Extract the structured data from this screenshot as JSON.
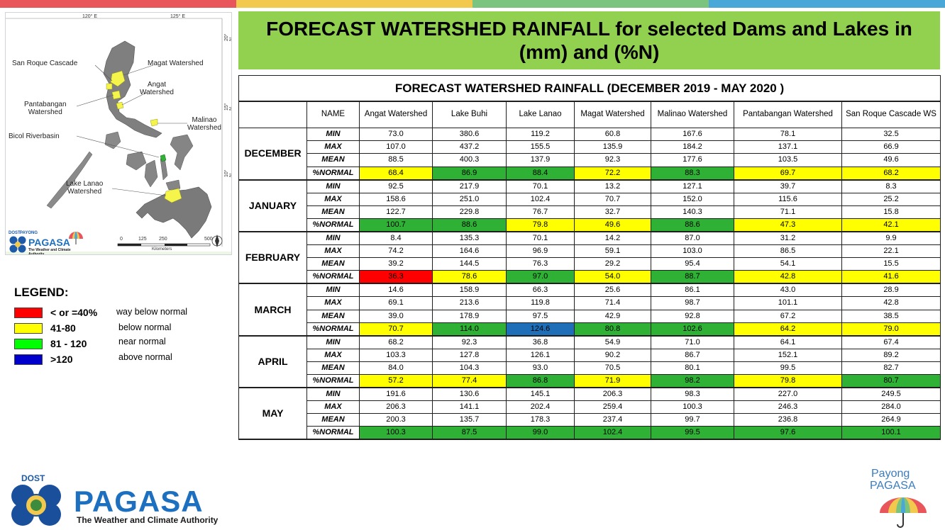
{
  "colors": {
    "stripe": [
      "#e8565b",
      "#f2c94c",
      "#7bc47f",
      "#4aa8d8"
    ],
    "banner_bg": "#92d050",
    "way_below": "#ff0000",
    "below": "#ffff00",
    "near": "#2eb135",
    "above": "#1f6fb8",
    "legend_near": "#00ff00",
    "legend_above": "#0000cc"
  },
  "banner": {
    "title": "FORECAST WATERSHED RAINFALL  for selected Dams and Lakes in (mm) and (%N)"
  },
  "map": {
    "lon_labels": [
      "120° E",
      "125° E"
    ],
    "lat_labels": [
      "20° N",
      "15° N",
      "10° N"
    ],
    "labels": {
      "san_roque": "San Roque Cascade",
      "magat": "Magat Watershed",
      "angat": "Angat\nWatershed",
      "pantabangan": "Pantabangan\nWatershed",
      "malinao": "Malinao\nWatershed",
      "bicol": "Bicol Riverbasin",
      "lanao": "Lake Lanao\nWatershed"
    },
    "scale_labels": [
      "0",
      "125",
      "250",
      "500"
    ],
    "scale_unit": "Kilometers",
    "logo_dost": "DOST",
    "logo_payong": "PAYONG",
    "logo_pagasa": "PAGASA",
    "logo_tagline": "The Weather and Climate Authority"
  },
  "legend": {
    "title": "LEGEND:",
    "items": [
      {
        "range": "< or =40%",
        "desc": "way below normal",
        "color": "#ff0000"
      },
      {
        "range": "41-80",
        "desc": "below normal",
        "color": "#ffff00"
      },
      {
        "range": "81 - 120",
        "desc": "near normal",
        "color": "#00ff00"
      },
      {
        "range": ">120",
        "desc": "above normal",
        "color": "#0000cc"
      }
    ]
  },
  "table": {
    "caption": "FORECAST WATERSHED RAINFALL (DECEMBER 2019 - MAY 2020 )",
    "name_header": "NAME",
    "columns": [
      "Angat Watershed",
      "Lake Buhi",
      "Lake Lanao",
      "Magat Watershed",
      "Malinao Watershed",
      "Pantabangan Watershed",
      "San Roque Cascade WS"
    ],
    "stats": [
      "MIN",
      "MAX",
      "MEAN",
      "%NORMAL"
    ],
    "months": [
      {
        "name": "DECEMBER",
        "min": [
          "73.0",
          "380.6",
          "119.2",
          "60.8",
          "167.6",
          "78.1",
          "32.5"
        ],
        "max": [
          "107.0",
          "437.2",
          "155.5",
          "135.9",
          "184.2",
          "137.1",
          "66.9"
        ],
        "mean": [
          "88.5",
          "400.3",
          "137.9",
          "92.3",
          "177.6",
          "103.5",
          "49.6"
        ],
        "normal": [
          "68.4",
          "86.9",
          "88.4",
          "72.2",
          "88.3",
          "69.7",
          "68.2"
        ],
        "normal_class": [
          "below",
          "near",
          "near",
          "below",
          "near",
          "below",
          "below"
        ]
      },
      {
        "name": "JANUARY",
        "min": [
          "92.5",
          "217.9",
          "70.1",
          "13.2",
          "127.1",
          "39.7",
          "8.3"
        ],
        "max": [
          "158.6",
          "251.0",
          "102.4",
          "70.7",
          "152.0",
          "115.6",
          "25.2"
        ],
        "mean": [
          "122.7",
          "229.8",
          "76.7",
          "32.7",
          "140.3",
          "71.1",
          "15.8"
        ],
        "normal": [
          "100.7",
          "88.6",
          "79.8",
          "49.6",
          "88.6",
          "47.3",
          "42.1"
        ],
        "normal_class": [
          "near",
          "near",
          "below",
          "below",
          "near",
          "below",
          "below"
        ]
      },
      {
        "name": "FEBRUARY",
        "min": [
          "8.4",
          "135.3",
          "70.1",
          "14.2",
          "87.0",
          "31.2",
          "9.9"
        ],
        "max": [
          "74.2",
          "164.6",
          "96.9",
          "59.1",
          "103.0",
          "86.5",
          "22.1"
        ],
        "mean": [
          "39.2",
          "144.5",
          "76.3",
          "29.2",
          "95.4",
          "54.1",
          "15.5"
        ],
        "normal": [
          "36.3",
          "78.6",
          "97.0",
          "54.0",
          "88.7",
          "42.8",
          "41.6"
        ],
        "normal_class": [
          "way_below",
          "below",
          "near",
          "below",
          "near",
          "below",
          "below"
        ]
      },
      {
        "name": "MARCH",
        "min": [
          "14.6",
          "158.9",
          "66.3",
          "25.6",
          "86.1",
          "43.0",
          "28.9"
        ],
        "max": [
          "69.1",
          "213.6",
          "119.8",
          "71.4",
          "98.7",
          "101.1",
          "42.8"
        ],
        "mean": [
          "39.0",
          "178.9",
          "97.5",
          "42.9",
          "92.8",
          "67.2",
          "38.5"
        ],
        "normal": [
          "70.7",
          "114.0",
          "124.6",
          "80.8",
          "102.6",
          "64.2",
          "79.0"
        ],
        "normal_class": [
          "below",
          "near",
          "above",
          "near",
          "near",
          "below",
          "below"
        ]
      },
      {
        "name": "APRIL",
        "min": [
          "68.2",
          "92.3",
          "36.8",
          "54.9",
          "71.0",
          "64.1",
          "67.4"
        ],
        "max": [
          "103.3",
          "127.8",
          "126.1",
          "90.2",
          "86.7",
          "152.1",
          "89.2"
        ],
        "mean": [
          "84.0",
          "104.3",
          "93.0",
          "70.5",
          "80.1",
          "99.5",
          "82.7"
        ],
        "normal": [
          "57.2",
          "77.4",
          "86.8",
          "71.9",
          "98.2",
          "79.8",
          "80.7"
        ],
        "normal_class": [
          "below",
          "below",
          "near",
          "below",
          "near",
          "below",
          "near"
        ]
      },
      {
        "name": "MAY",
        "min": [
          "191.6",
          "130.6",
          "145.1",
          "206.3",
          "98.3",
          "227.0",
          "249.5"
        ],
        "max": [
          "206.3",
          "141.1",
          "202.4",
          "259.4",
          "100.3",
          "246.3",
          "284.0"
        ],
        "mean": [
          "200.3",
          "135.7",
          "178.3",
          "237.4",
          "99.7",
          "236.8",
          "264.9"
        ],
        "normal": [
          "100.3",
          "87.5",
          "99.0",
          "102.4",
          "99.5",
          "97.6",
          "100.1"
        ],
        "normal_class": [
          "near",
          "near",
          "near",
          "near",
          "near",
          "near",
          "near"
        ]
      }
    ]
  },
  "footer": {
    "dost": "DOST",
    "pagasa": "PAGASA",
    "tagline": "The Weather and Climate Authority",
    "payong_1": "Payong",
    "payong_2": "PAGASA"
  }
}
